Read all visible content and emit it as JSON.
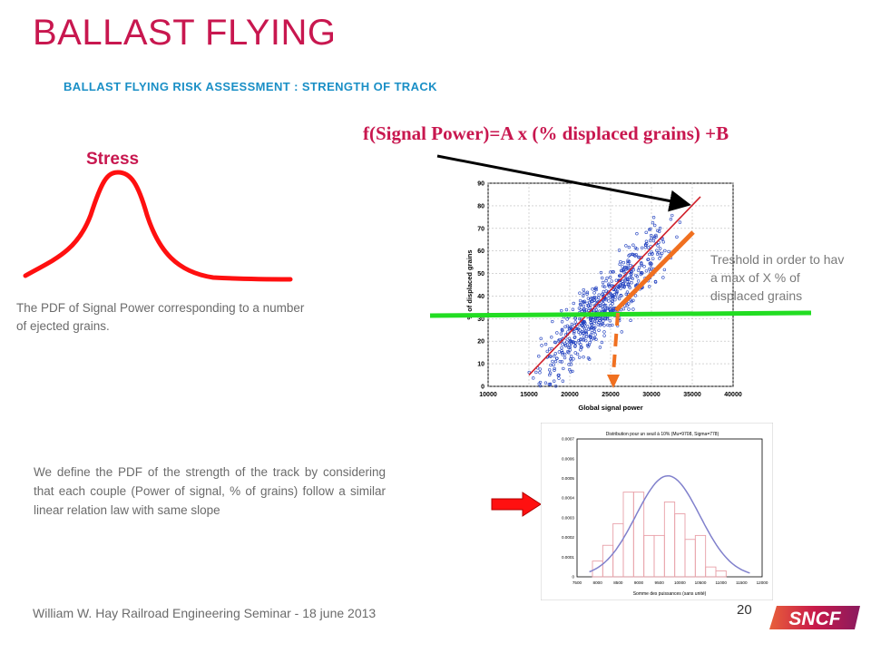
{
  "title": "BALLAST FLYING",
  "subtitle": "BALLAST FLYING RISK ASSESSMENT  : STRENGTH OF TRACK",
  "formula": "f(Signal Power)=A x (% displaced grains) +B",
  "stress_label": "Stress",
  "pdf_description": "The PDF of Signal Power corresponding to a number of ejected grains.",
  "threshold_note": [
    "Treshold in order to hav",
    "a max of X % of",
    "displaced grains"
  ],
  "strength_description": "We define the PDF of the strength of the track by considering that each couple (Power of signal, % of grains) follow a similar linear relation law with same slope",
  "footer": "William W. Hay Railroad Engineering Seminar - 18 june 2013",
  "page_number": "20",
  "logo_text": "SNCF",
  "colors": {
    "title": "#c8174f",
    "subtitle": "#1a8fc6",
    "scatter": "#1f3fbf",
    "fit_line": "#d0202a",
    "threshold": "#22dd22",
    "shift": "#f07020",
    "curve": "#ff1010",
    "pdf_fit": "#8080cc",
    "bars": "#e8a0a8"
  },
  "chart_data": [
    {
      "type": "scatter",
      "xlabel": "Global signal power",
      "ylabel": "% of displaced grains",
      "xlim": [
        10000,
        40000
      ],
      "ylim": [
        0,
        90
      ],
      "x_ticks": [
        "10000",
        "15000",
        "20000",
        "25000",
        "30000",
        "35000",
        "40000"
      ],
      "y_ticks": [
        "0",
        "10",
        "20",
        "30",
        "40",
        "50",
        "60",
        "70",
        "80",
        "90"
      ],
      "grid": true,
      "fit_line": {
        "x": [
          15000,
          36000
        ],
        "y": [
          5,
          84
        ]
      },
      "shifted_line": {
        "x": [
          25800,
          36500
        ],
        "y": [
          34,
          70
        ]
      },
      "threshold_y": 32,
      "threshold_x_drop": 26000,
      "point_band": {
        "x_range": [
          15000,
          36000
        ],
        "y_at_xmin": 4,
        "y_at_xmax": 82,
        "spread": 14
      }
    },
    {
      "type": "bar",
      "title": "Distribution pour un seuil à 10% (Mu=9708, Sigma=778)",
      "xlabel": "Somme des puissances (sans unité)",
      "x_ticks": [
        "7500",
        "8000",
        "8500",
        "9000",
        "9500",
        "10000",
        "10500",
        "11000",
        "11500",
        "12000"
      ],
      "y_ticks": [
        "0",
        "0.0001",
        "0.0002",
        "0.0003",
        "0.0004",
        "0.0005",
        "0.0006",
        "0.0007"
      ],
      "ylim": [
        0,
        0.0007
      ],
      "categories": [
        8000,
        8250,
        8500,
        8750,
        9000,
        9250,
        9500,
        9750,
        10000,
        10250,
        10500,
        10750,
        11000,
        11250,
        11500
      ],
      "values": [
        8e-05,
        0.00016,
        0.00027,
        0.00043,
        0.00043,
        0.00021,
        0.00021,
        0.00038,
        0.00032,
        0.00019,
        0.00021,
        5e-05,
        3e-05,
        0.0,
        0.0
      ],
      "fit": {
        "type": "normal",
        "mu": 9708,
        "sigma": 778
      }
    }
  ]
}
